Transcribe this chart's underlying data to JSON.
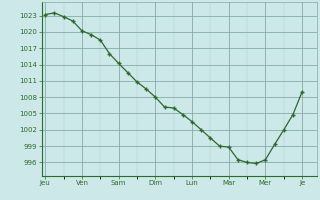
{
  "x_values": [
    0,
    0.5,
    1,
    1.5,
    2,
    2.5,
    3,
    3.5,
    4,
    4.5,
    5,
    5.5,
    6,
    6.5,
    7,
    7.5,
    8,
    8.5,
    9,
    9.5,
    10,
    10.5,
    11,
    11.5,
    12,
    12.5,
    13,
    13.5,
    14
  ],
  "y_values": [
    1023.2,
    1023.5,
    1022.8,
    1022.0,
    1020.2,
    1019.5,
    1018.5,
    1016.0,
    1014.2,
    1012.5,
    1010.8,
    1009.5,
    1008.0,
    1006.2,
    1006.0,
    1004.8,
    1003.5,
    1002.0,
    1000.5,
    999.0,
    998.8,
    996.5,
    996.0,
    995.8,
    996.5,
    999.3,
    1002.0,
    1004.8,
    1009.0
  ],
  "y_ticks": [
    996,
    999,
    1002,
    1005,
    1008,
    1011,
    1014,
    1017,
    1020,
    1023
  ],
  "ylim": [
    993.5,
    1025.5
  ],
  "xlim": [
    -0.2,
    14.8
  ],
  "day_labels": [
    "Jeu",
    "Ven",
    "Sam",
    "Dim",
    "Lun",
    "Mar",
    "Mer",
    "Je"
  ],
  "day_positions": [
    0,
    2,
    4,
    6,
    8,
    10,
    12,
    14
  ],
  "line_color": "#2d6a2d",
  "marker": "+",
  "bg_color": "#cce8e8",
  "grid_minor_color": "#aacccc",
  "grid_major_color": "#88aaaa",
  "marker_size": 3.5,
  "marker_edge_width": 1.0,
  "linewidth": 0.9,
  "tick_fontsize": 5.0,
  "tick_color": "#2d6a2d"
}
